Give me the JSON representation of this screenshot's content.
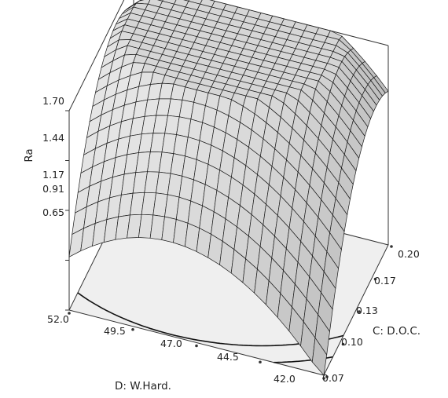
{
  "chart_data": {
    "type": "surface3d",
    "title": "",
    "zlabel": "Ra",
    "ylabel": "C: D.O.C.",
    "xlabel": "D: W.Hard.",
    "z_ticks": [
      "1.70",
      "1.44",
      "1.17",
      "0.91",
      "0.65"
    ],
    "doc_ticks": [
      "0.20",
      "0.17",
      "0.13",
      "0.10",
      "0.07"
    ],
    "hard_ticks": [
      "52.0",
      "49.5",
      "47.0",
      "44.5",
      "42.0"
    ],
    "z_range": [
      0.65,
      1.7
    ],
    "doc_range": [
      0.07,
      0.2
    ],
    "hard_range": [
      42.0,
      52.0
    ],
    "surface_corners": [
      {
        "hardness": 52.0,
        "doc": 0.07,
        "ra": 0.93
      },
      {
        "hardness": 52.0,
        "doc": 0.2,
        "ra": 1.56
      },
      {
        "hardness": 42.0,
        "doc": 0.2,
        "ra": 1.46
      },
      {
        "hardness": 42.0,
        "doc": 0.07,
        "ra": 0.63
      }
    ],
    "surface_peak": {
      "hardness": 47.0,
      "doc": 0.17,
      "ra": 1.7
    },
    "contour_levels": [
      "0.91",
      "1.17"
    ],
    "grid": true,
    "colors": {
      "surface": "#d9d9d9",
      "mesh": "#1a1a1a",
      "floor": "#efefef",
      "axes": "#333333"
    }
  }
}
